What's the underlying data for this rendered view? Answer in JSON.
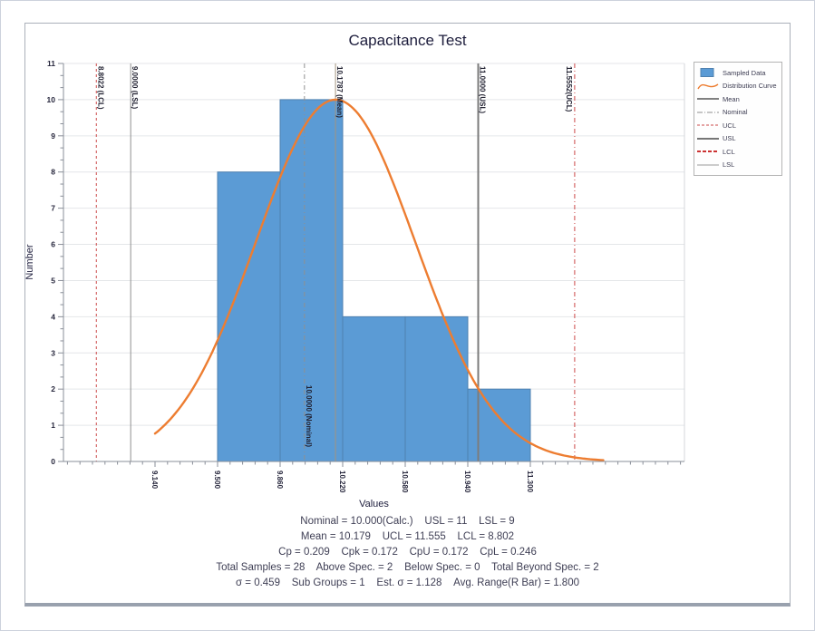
{
  "chart": {
    "title": "Capacitance Test",
    "xlabel": "Values",
    "ylabel": "Number"
  },
  "chart_data": {
    "type": "bar",
    "subtype": "histogram-with-distribution-curve",
    "title": "Capacitance Test",
    "xlabel": "Values",
    "ylabel": "Number",
    "xlim": [
      8.613,
      12.187
    ],
    "ylim": [
      0,
      11
    ],
    "grid": "horizontal",
    "legend_position": "top-right",
    "histogram": {
      "series_name": "Sampled Data",
      "bin_start": 9.5,
      "bin_width": 0.36,
      "counts": [
        8,
        10,
        4,
        4,
        2
      ]
    },
    "xticks": [
      "9.140",
      "9.500",
      "9.860",
      "10.220",
      "10.580",
      "10.940",
      "11.300"
    ],
    "xtick_values": [
      9.14,
      9.5,
      9.86,
      10.22,
      10.58,
      10.94,
      11.3
    ],
    "yticks": [
      0,
      1,
      2,
      3,
      4,
      5,
      6,
      7,
      8,
      9,
      10,
      11
    ],
    "x_minor_step": 0.072,
    "y_minor_per_interval": 2,
    "curve": {
      "name": "Distribution Curve",
      "shape": "normal",
      "amplitude": 10,
      "mean": 10.179,
      "sigma": 0.459,
      "x_start": 9.14,
      "x_end": 11.72
    },
    "vlines": [
      {
        "role": "lcl",
        "value": 8.8022,
        "label": "8.8022 (LCL)",
        "color": "#cc4949",
        "width": 1,
        "dash": "3,3",
        "label_side": "right",
        "label_anchor": "top"
      },
      {
        "role": "lsl",
        "value": 9.0,
        "label": "9.0000 (LSL)",
        "color": "#8f8f8f",
        "width": 1,
        "dash": "",
        "label_side": "right",
        "label_anchor": "top"
      },
      {
        "role": "nominal",
        "value": 10.0,
        "label": "10.0000 (Nominal)",
        "color": "#8f8f8f",
        "width": 1,
        "dash": "5,3,1,3",
        "label_side": "right",
        "label_anchor": "bottom"
      },
      {
        "role": "mean",
        "value": 10.1787,
        "label": "10.1787 (Mean)",
        "color": "#a3937f",
        "width": 1,
        "dash": "",
        "label_side": "right",
        "label_anchor": "top"
      },
      {
        "role": "usl",
        "value": 11.0,
        "label": "11.0000 (USL)",
        "color": "#7c7c7c",
        "width": 2,
        "dash": "",
        "label_side": "right",
        "label_anchor": "top"
      },
      {
        "role": "ucl",
        "value": 11.5552,
        "label": "11.5552(UCL)",
        "color": "#cc4949",
        "width": 1,
        "dash": "5,3,1,3",
        "label_side": "left",
        "label_anchor": "top"
      }
    ]
  },
  "legend": {
    "items": [
      {
        "label": "Sampled Data",
        "marker": "swatch"
      },
      {
        "label": "Distribution Curve",
        "marker": "curve"
      },
      {
        "label": "Mean",
        "marker": "line",
        "color": "#808080",
        "width": 2,
        "dash": ""
      },
      {
        "label": "Nominal",
        "marker": "line",
        "color": "#8f8f8f",
        "width": 1,
        "dash": "6,2,1,2"
      },
      {
        "label": "UCL",
        "marker": "line",
        "color": "#cc4949",
        "width": 1,
        "dash": "3,2"
      },
      {
        "label": "USL",
        "marker": "line",
        "color": "#767676",
        "width": 2,
        "dash": ""
      },
      {
        "label": "LCL",
        "marker": "line",
        "color": "#cc3333",
        "width": 2,
        "dash": "4,2"
      },
      {
        "label": "LSL",
        "marker": "line",
        "color": "#9a9a9a",
        "width": 1,
        "dash": ""
      }
    ]
  },
  "stats": {
    "lines": [
      "Nominal = 10.000(Calc.)    USL = 11    LSL = 9",
      "Mean = 10.179    UCL = 11.555    LCL = 8.802",
      "Cp = 0.209    Cpk = 0.172    CpU = 0.172    CpL = 0.246",
      "Total Samples = 28    Above Spec. = 2    Below Spec. = 0    Total Beyond Spec. = 2",
      "σ = 0.459    Sub Groups = 1    Est. σ = 1.128    Avg. Range(R Bar) = 1.800"
    ]
  },
  "colors": {
    "bar_fill": "#5b9bd5",
    "bar_border": "#4f81b0",
    "curve": "#ed7d31",
    "grid": "#e4e6e9",
    "plot_border": "#d4d7db",
    "axis": "#8a8f99",
    "tick_text": "#26263c",
    "line_label_text": "#202030"
  }
}
